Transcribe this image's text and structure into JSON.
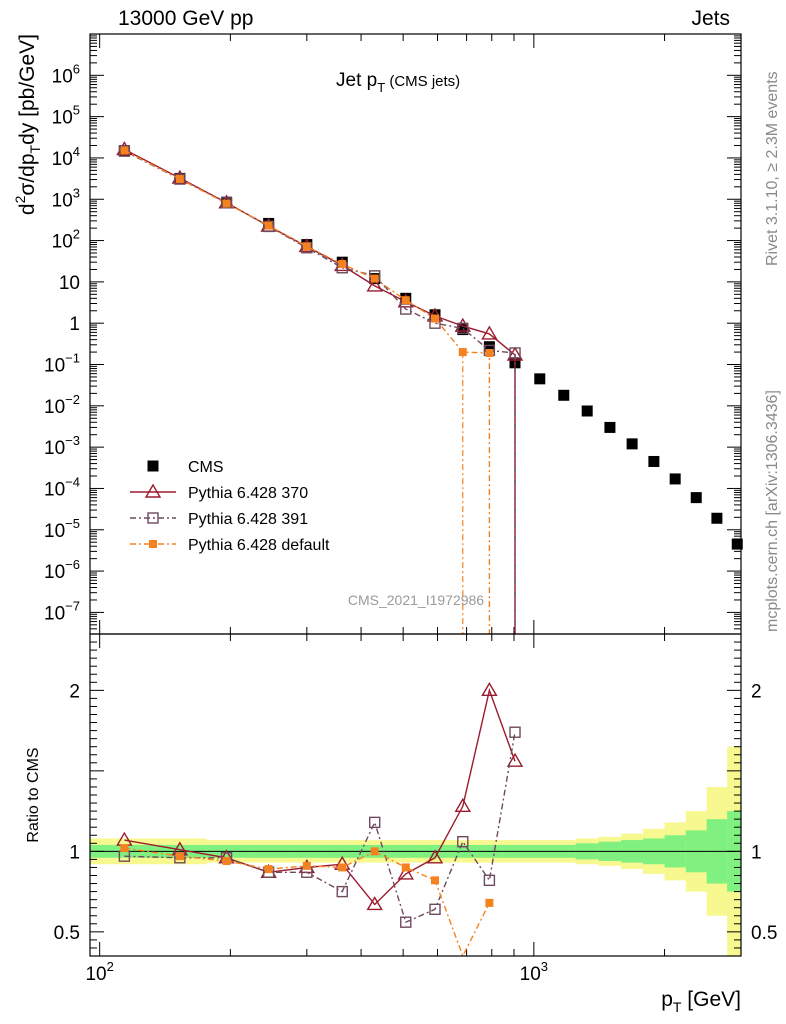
{
  "header": {
    "left": "13000 GeV pp",
    "right": "Jets"
  },
  "side_labels": {
    "rivet": "Rivet 3.1.10, ≥ 2.3M events",
    "mcplots": "mcplots.cern.ch [arXiv:1306.3436]"
  },
  "watermark": "CMS_2021_I1972986",
  "colors": {
    "cms": "#000000",
    "p370": "#9b1b2e",
    "p391": "#6e4a5e",
    "pdef": "#f58220",
    "band_green": "#80f080",
    "band_yellow": "#f8f890"
  },
  "chart_data": [
    {
      "type": "scatter",
      "title": "Jet p_T (CMS jets)",
      "ylabel": "d²σ/dp_T dy [pb/GeV]",
      "xlabel": "p_T [GeV]",
      "xscale": "log",
      "yscale": "log",
      "xlim": [
        95,
        3000
      ],
      "ylim": [
        3e-08,
        10000000.0
      ],
      "legend_position": "bottom-left",
      "x": [
        114,
        153,
        196,
        245,
        300,
        362,
        430,
        507,
        592,
        686,
        790,
        905,
        1032,
        1172,
        1327,
        1497,
        1684,
        1890,
        2116,
        2366,
        2640,
        2941
      ],
      "series": [
        {
          "name": "CMS",
          "marker": "filled-square",
          "values": [
            15000,
            3200,
            850,
            260,
            80,
            30,
            12,
            4.0,
            1.6,
            0.7,
            0.27,
            0.11,
            0.045,
            0.018,
            0.0075,
            0.003,
            0.0012,
            0.00045,
            0.00017,
            6e-05,
            1.9e-05,
            4.5e-06
          ]
        },
        {
          "name": "Pythia 6.428 370",
          "marker": "open-triangle",
          "values": [
            16000,
            3250,
            820,
            225,
            72,
            25,
            8,
            3.3,
            1.5,
            0.85,
            0.55,
            0.17,
            null,
            null,
            null,
            null,
            null,
            null,
            null,
            null,
            null,
            null
          ]
        },
        {
          "name": "Pythia 6.428 391",
          "marker": "open-square",
          "values": [
            14600,
            3080,
            820,
            220,
            67,
            22,
            14,
            2.2,
            1.0,
            0.75,
            0.22,
            0.19,
            null,
            null,
            null,
            null,
            null,
            null,
            null,
            null,
            null,
            null
          ]
        },
        {
          "name": "Pythia 6.428 default",
          "marker": "small-filled-square",
          "values": [
            15200,
            3100,
            790,
            230,
            72,
            27,
            12,
            3.6,
            1.3,
            0.2,
            0.19,
            null,
            null,
            null,
            null,
            null,
            null,
            null,
            null,
            null,
            null,
            null
          ]
        }
      ]
    },
    {
      "type": "line",
      "ylabel": "Ratio to CMS",
      "xlabel": "p_T [GeV]",
      "xscale": "log",
      "xlim": [
        95,
        3000
      ],
      "ylim": [
        0.35,
        2.35
      ],
      "x": [
        114,
        153,
        196,
        245,
        300,
        362,
        430,
        507,
        592,
        686,
        790,
        905
      ],
      "series": [
        {
          "name": "Pythia 6.428 370",
          "values": [
            1.07,
            1.01,
            0.96,
            0.87,
            0.9,
            0.92,
            0.67,
            0.86,
            0.96,
            1.28,
            2.0,
            1.56
          ]
        },
        {
          "name": "Pythia 6.428 391",
          "values": [
            0.97,
            0.96,
            0.96,
            0.87,
            0.87,
            0.75,
            1.18,
            0.56,
            0.64,
            1.06,
            0.82,
            1.74
          ]
        },
        {
          "name": "Pythia 6.428 default",
          "values": [
            1.02,
            0.97,
            0.94,
            0.89,
            0.91,
            0.9,
            1.0,
            0.9,
            0.82,
            0.3,
            0.68,
            null
          ]
        }
      ],
      "band_edges": [
        95,
        136,
        176,
        222,
        275,
        334,
        398,
        468,
        548,
        638,
        737,
        846,
        967,
        1101,
        1248,
        1410,
        1588,
        1784,
        2000,
        2238,
        2500,
        2787,
        3000
      ],
      "band_green": [
        0.04,
        0.04,
        0.04,
        0.04,
        0.04,
        0.04,
        0.04,
        0.04,
        0.04,
        0.04,
        0.04,
        0.04,
        0.04,
        0.04,
        0.05,
        0.06,
        0.07,
        0.08,
        0.1,
        0.13,
        0.2,
        0.25
      ],
      "band_yellow": [
        0.08,
        0.08,
        0.07,
        0.07,
        0.07,
        0.07,
        0.07,
        0.07,
        0.07,
        0.07,
        0.07,
        0.07,
        0.07,
        0.07,
        0.08,
        0.09,
        0.11,
        0.14,
        0.18,
        0.25,
        0.4,
        0.65
      ]
    }
  ]
}
